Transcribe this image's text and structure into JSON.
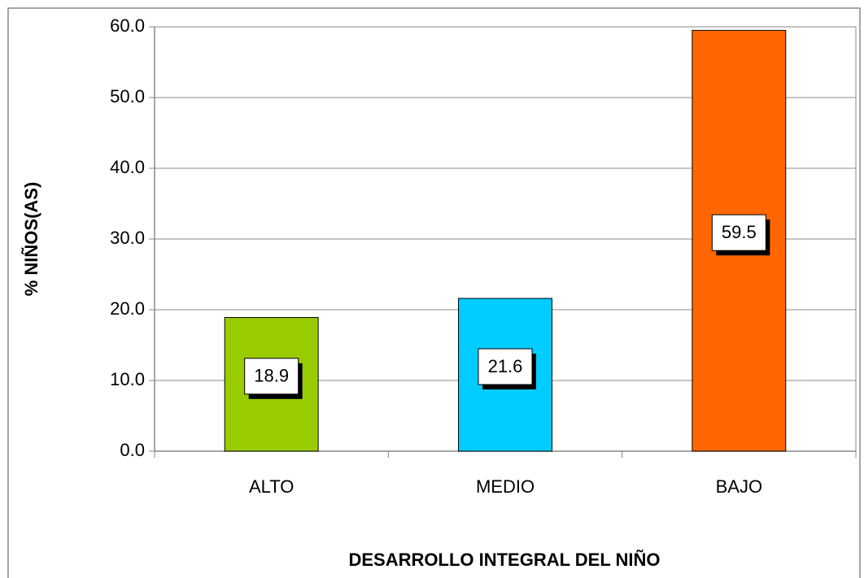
{
  "chart_data": {
    "type": "bar",
    "x_label": "DESARROLLO INTEGRAL DEL NIÑO",
    "y_label": "% NIÑOS(AS)",
    "categories": [
      "ALTO",
      "MEDIO",
      "BAJO"
    ],
    "values": [
      18.9,
      21.6,
      59.5
    ],
    "colors": [
      "#99cc00",
      "#00ccff",
      "#ff6600"
    ],
    "ylim": [
      0,
      60
    ],
    "yticks": [
      {
        "value": 0,
        "label": "0.0"
      },
      {
        "value": 10,
        "label": "10.0"
      },
      {
        "value": 20,
        "label": "20.0"
      },
      {
        "value": 30,
        "label": "30.0"
      },
      {
        "value": 40,
        "label": "40.0"
      },
      {
        "value": 50,
        "label": "50.0"
      },
      {
        "value": 60,
        "label": "60.0"
      }
    ],
    "grid": true
  }
}
